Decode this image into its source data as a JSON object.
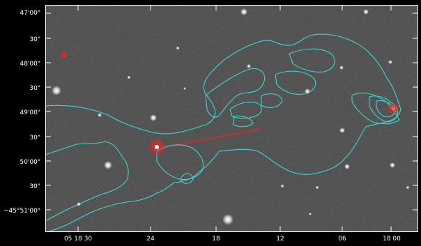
{
  "image": {
    "description_colors": {
      "background": "#000000",
      "sky": "#3a3a3a",
      "contour_cyan": "#3fd6d6",
      "contour_red": "#ff2020"
    }
  },
  "axes": {
    "y_ticks": [
      "47'00\"",
      "30\"",
      "48'00\"",
      "30\"",
      "49'00\"",
      "30\"",
      "50'00\"",
      "30\"",
      "−45°51'00\""
    ],
    "x_ticks": [
      "05 18 30",
      "24",
      "18",
      "12",
      "06",
      "18 00"
    ]
  }
}
